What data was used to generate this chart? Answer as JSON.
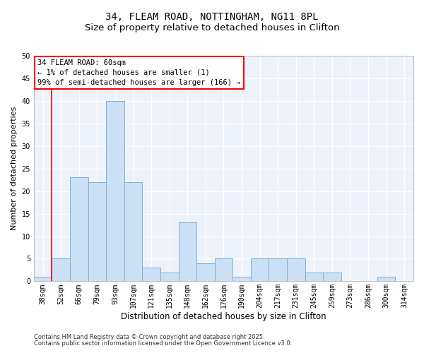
{
  "title_line1": "34, FLEAM ROAD, NOTTINGHAM, NG11 8PL",
  "title_line2": "Size of property relative to detached houses in Clifton",
  "xlabel": "Distribution of detached houses by size in Clifton",
  "ylabel": "Number of detached properties",
  "bar_color": "#cce0f5",
  "bar_edge_color": "#7ab0d8",
  "background_color": "#eef2fb",
  "grid_color": "#ffffff",
  "categories": [
    "38sqm",
    "52sqm",
    "66sqm",
    "79sqm",
    "93sqm",
    "107sqm",
    "121sqm",
    "135sqm",
    "148sqm",
    "162sqm",
    "176sqm",
    "190sqm",
    "204sqm",
    "217sqm",
    "231sqm",
    "245sqm",
    "259sqm",
    "273sqm",
    "286sqm",
    "300sqm",
    "314sqm"
  ],
  "values": [
    1,
    5,
    23,
    22,
    40,
    22,
    3,
    2,
    13,
    4,
    5,
    1,
    5,
    5,
    5,
    2,
    2,
    0,
    0,
    1,
    0
  ],
  "ylim": [
    0,
    50
  ],
  "yticks": [
    0,
    5,
    10,
    15,
    20,
    25,
    30,
    35,
    40,
    45,
    50
  ],
  "red_line_index": 1,
  "annotation_box_text": "34 FLEAM ROAD: 60sqm\n← 1% of detached houses are smaller (1)\n99% of semi-detached houses are larger (166) →",
  "footer_line1": "Contains HM Land Registry data © Crown copyright and database right 2025.",
  "footer_line2": "Contains public sector information licensed under the Open Government Licence v3.0.",
  "title_fontsize": 10,
  "subtitle_fontsize": 9.5,
  "tick_fontsize": 7,
  "ylabel_fontsize": 8,
  "xlabel_fontsize": 8.5,
  "annotation_fontsize": 7.5,
  "footer_fontsize": 6
}
